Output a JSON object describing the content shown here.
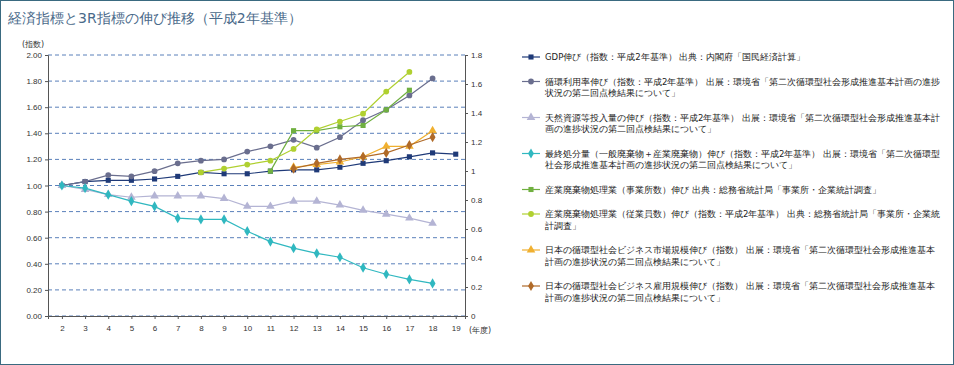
{
  "chart_data": {
    "type": "line",
    "title": "経済指標と3R指標の伸び推移（平成2年基準）",
    "y_label": "(指数)",
    "x_label": "(年度)",
    "x": [
      2,
      3,
      4,
      5,
      6,
      7,
      8,
      9,
      10,
      11,
      12,
      13,
      14,
      15,
      16,
      17,
      18,
      19
    ],
    "xlim": [
      1.4,
      19.4
    ],
    "xticks": [
      2,
      3,
      4,
      5,
      6,
      7,
      8,
      9,
      10,
      11,
      12,
      13,
      14,
      15,
      16,
      17,
      18,
      19
    ],
    "ylim": [
      0,
      2
    ],
    "yticks": [
      {
        "value": 0,
        "label": "0.00"
      },
      {
        "value": 0.2,
        "label": "0.20"
      },
      {
        "value": 0.4,
        "label": "0.40"
      },
      {
        "value": 0.6,
        "label": "0.60"
      },
      {
        "value": 0.8,
        "label": "0.80"
      },
      {
        "value": 1,
        "label": "1.00"
      },
      {
        "value": 1.2,
        "label": "1.20"
      },
      {
        "value": 1.4,
        "label": "1.40"
      },
      {
        "value": 1.6,
        "label": "1.60"
      },
      {
        "value": 1.8,
        "label": "1.80"
      },
      {
        "value": 2,
        "label": "2.00"
      }
    ],
    "y2lim": [
      0,
      1.8
    ],
    "y2ticks": [
      0,
      0.2,
      0.4,
      0.6,
      0.8,
      1,
      1.2,
      1.4,
      1.6,
      1.8
    ],
    "grid": true,
    "legend": "right",
    "series": [
      {
        "name": "GDP伸び（指数：平成2年基準） 出典：内閣府「国民経済計算」",
        "color": "#1f3a78",
        "marker": "square",
        "values": [
          1.0,
          1.03,
          1.04,
          1.04,
          1.05,
          1.07,
          1.1,
          1.09,
          1.09,
          1.11,
          1.12,
          1.12,
          1.14,
          1.17,
          1.19,
          1.22,
          1.25,
          1.24
        ]
      },
      {
        "name": "循環利用率伸び（指数：平成2年基準） 出展：環境省「第二次循環型社会形成推進基本計画の進捗状況の第二回点検結果について」",
        "color": "#6a6e8e",
        "marker": "circle",
        "values": [
          1.0,
          1.03,
          1.08,
          1.07,
          1.11,
          1.17,
          1.19,
          1.2,
          1.26,
          1.3,
          1.35,
          1.29,
          1.37,
          1.5,
          1.58,
          1.69,
          1.82,
          null
        ]
      },
      {
        "name": "天然資源等投入量の伸び（指数：平成2年基準） 出展：環境省「第二次循環型社会形成推進基本計画の進捗状況の第二回点検結果について」",
        "color": "#b4b4d4",
        "marker": "triangle",
        "values": [
          1.0,
          0.97,
          0.93,
          0.91,
          0.92,
          0.92,
          0.92,
          0.9,
          0.84,
          0.84,
          0.88,
          0.88,
          0.85,
          0.81,
          0.78,
          0.75,
          0.71,
          null
        ]
      },
      {
        "name": "最終処分量（一般廃棄物＋産業廃棄物）伸び（指数：平成2年基準） 出展：環境省「第二次循環型社会形成推進基本計画の進捗状況の第二回点検結果について」",
        "color": "#30b8c0",
        "marker": "diamond",
        "values": [
          1.0,
          0.98,
          0.93,
          0.88,
          0.84,
          0.75,
          0.74,
          0.74,
          0.65,
          0.57,
          0.52,
          0.48,
          0.45,
          0.37,
          0.32,
          0.28,
          0.25,
          null
        ]
      },
      {
        "name": "産業廃棄物処理業（事業所数）伸び 出典：総務省統計局「事業所・企業統計調査」",
        "color": "#70b040",
        "marker": "square",
        "values": [
          null,
          null,
          null,
          null,
          null,
          null,
          null,
          null,
          null,
          1.11,
          1.42,
          1.42,
          1.45,
          1.46,
          1.58,
          1.73,
          null,
          null
        ]
      },
      {
        "name": "産業廃棄物処理業（従業員数）伸び（指数：平成2年基準） 出典：総務省統計局「事業所・企業統計調査」",
        "color": "#b0d030",
        "marker": "circle",
        "values": [
          null,
          null,
          null,
          null,
          null,
          null,
          1.1,
          1.13,
          1.16,
          1.19,
          1.28,
          1.43,
          1.49,
          1.55,
          1.72,
          1.87,
          null,
          null
        ]
      },
      {
        "name": "日本の循環型社会ビジネス市場規模伸び（指数） 出展：環境省「第二次循環型社会形成推進基本計画の進捗状況の第二回点検結果について」",
        "color": "#f0b030",
        "marker": "triangle",
        "values": [
          null,
          null,
          null,
          null,
          null,
          null,
          null,
          null,
          null,
          null,
          1.14,
          1.16,
          1.18,
          1.22,
          1.3,
          1.3,
          1.42,
          null
        ]
      },
      {
        "name": "日本の循環型社会ビジネス雇用規模伸び（指数） 出展：環境省「第二次循環型社会形成推進基本計画の進捗状況の第二回点検結果について」",
        "color": "#b06a28",
        "marker": "diamond",
        "values": [
          null,
          null,
          null,
          null,
          null,
          null,
          null,
          null,
          null,
          null,
          1.13,
          1.17,
          1.2,
          1.22,
          1.25,
          1.31,
          1.37,
          null
        ]
      }
    ]
  }
}
